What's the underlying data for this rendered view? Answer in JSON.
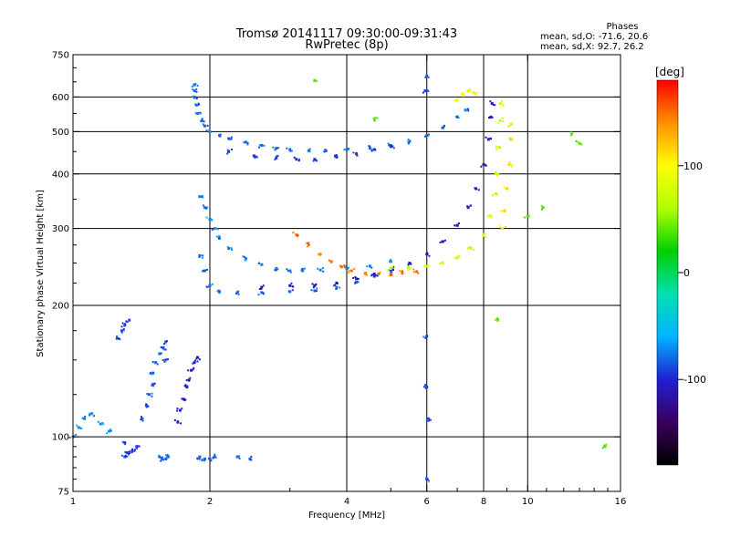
{
  "header": {
    "title": "Tromsø 20141117 09:30:00-09:31:43",
    "subtitle": "RwPretec (8p)"
  },
  "phase_stats": {
    "heading": "Phases",
    "line_o": "mean, sd,O: -71.6, 20.6",
    "line_x": "mean, sd,X:  92.7, 26.2"
  },
  "colorbar": {
    "unit": "[deg]",
    "ticks": [
      100,
      0,
      -100
    ],
    "range": [
      -180,
      180
    ],
    "stops": [
      "#000000",
      "#3a0060",
      "#2020d0",
      "#00b4ff",
      "#00e0b0",
      "#00d000",
      "#b0ff00",
      "#ffff00",
      "#ff9000",
      "#ff0000"
    ]
  },
  "chart_data": {
    "type": "scatter",
    "title": "Tromsø 20141117 09:30:00-09:31:43",
    "subtitle": "RwPretec (8p)",
    "xlabel": "Frequency [MHz]",
    "ylabel": "Stationary phase Virtual Height [km]",
    "x_scale": "log",
    "y_scale": "log",
    "xlim": [
      1,
      16
    ],
    "ylim": [
      75,
      750
    ],
    "x_ticks": [
      1,
      2,
      4,
      6,
      8,
      10,
      16
    ],
    "y_ticks": [
      75,
      100,
      200,
      300,
      400,
      500,
      600,
      750
    ],
    "x_grid": [
      2,
      4,
      6,
      8,
      10
    ],
    "y_grid": [
      100,
      200,
      300,
      400,
      500,
      600
    ],
    "grid": true,
    "color_variable": "phase [deg]",
    "series": [
      {
        "points": [
          [
            1.85,
            640
          ],
          [
            1.85,
            620
          ],
          [
            1.85,
            600
          ],
          [
            1.87,
            575
          ],
          [
            1.88,
            550
          ],
          [
            1.92,
            530
          ],
          [
            1.95,
            515
          ],
          [
            2.0,
            500
          ],
          [
            2.1,
            490
          ],
          [
            2.2,
            482
          ],
          [
            2.4,
            473
          ],
          [
            2.6,
            465
          ],
          [
            2.8,
            458
          ],
          [
            3.0,
            455
          ],
          [
            3.3,
            452
          ],
          [
            3.6,
            452
          ],
          [
            4.0,
            455
          ],
          [
            4.5,
            458
          ],
          [
            5.0,
            465
          ],
          [
            5.5,
            475
          ],
          [
            6.0,
            490
          ],
          [
            6.5,
            510
          ],
          [
            7.0,
            540
          ],
          [
            7.3,
            560
          ]
        ],
        "phase": -80
      },
      {
        "points": [
          [
            2.2,
            450
          ],
          [
            2.5,
            440
          ],
          [
            2.8,
            435
          ],
          [
            3.1,
            432
          ],
          [
            3.4,
            432
          ],
          [
            3.8,
            437
          ],
          [
            4.2,
            445
          ],
          [
            4.6,
            455
          ],
          [
            5.0,
            462
          ]
        ],
        "phase": -95
      },
      {
        "points": [
          [
            1.9,
            355
          ],
          [
            1.95,
            335
          ],
          [
            2.0,
            315
          ],
          [
            2.05,
            300
          ],
          [
            2.1,
            285
          ],
          [
            2.2,
            270
          ],
          [
            2.4,
            256
          ],
          [
            2.6,
            248
          ],
          [
            2.8,
            243
          ],
          [
            3.0,
            240
          ],
          [
            3.2,
            240
          ],
          [
            3.5,
            241
          ],
          [
            4.0,
            243
          ],
          [
            4.5,
            246
          ],
          [
            5.0,
            252
          ]
        ],
        "phase": -75
      },
      {
        "points": [
          [
            1.9,
            260
          ],
          [
            1.95,
            240
          ],
          [
            2.0,
            222
          ],
          [
            2.1,
            215
          ],
          [
            2.3,
            214
          ],
          [
            2.6,
            214
          ],
          [
            3.0,
            215
          ],
          [
            3.4,
            216
          ],
          [
            3.8,
            220
          ],
          [
            4.2,
            226
          ],
          [
            4.6,
            233
          ],
          [
            5.0,
            240
          ]
        ],
        "phase": -80
      },
      {
        "points": [
          [
            2.6,
            220
          ],
          [
            3.0,
            222
          ],
          [
            3.4,
            222
          ],
          [
            3.8,
            225
          ],
          [
            4.2,
            230
          ],
          [
            4.6,
            236
          ],
          [
            5.0,
            242
          ],
          [
            5.5,
            250
          ],
          [
            6.0,
            262
          ],
          [
            6.5,
            280
          ],
          [
            7.0,
            305
          ],
          [
            7.4,
            335
          ],
          [
            7.7,
            370
          ],
          [
            8.0,
            420
          ],
          [
            8.2,
            480
          ],
          [
            8.3,
            540
          ],
          [
            8.35,
            580
          ]
        ],
        "phase": -110
      },
      {
        "points": [
          [
            3.1,
            290
          ],
          [
            3.3,
            275
          ],
          [
            3.5,
            262
          ],
          [
            3.7,
            252
          ],
          [
            3.9,
            245
          ],
          [
            4.1,
            240
          ],
          [
            4.4,
            237
          ],
          [
            4.7,
            236
          ],
          [
            5.0,
            236
          ],
          [
            5.3,
            237
          ],
          [
            5.7,
            239
          ]
        ],
        "phase": 150
      },
      {
        "points": [
          [
            5.0,
            243
          ],
          [
            5.5,
            243
          ],
          [
            6.0,
            246
          ],
          [
            6.5,
            250
          ],
          [
            7.0,
            257
          ],
          [
            7.5,
            270
          ],
          [
            8.0,
            290
          ],
          [
            8.3,
            320
          ],
          [
            8.5,
            360
          ],
          [
            8.6,
            400
          ],
          [
            8.65,
            460
          ],
          [
            8.7,
            530
          ],
          [
            8.7,
            580
          ]
        ],
        "phase": 75
      },
      {
        "points": [
          [
            7.0,
            590
          ],
          [
            7.2,
            610
          ],
          [
            7.4,
            620
          ],
          [
            7.6,
            615
          ]
        ],
        "phase": 90
      },
      {
        "points": [
          [
            8.8,
            300
          ],
          [
            8.9,
            330
          ],
          [
            9.0,
            370
          ],
          [
            9.1,
            420
          ],
          [
            9.2,
            480
          ],
          [
            9.2,
            520
          ]
        ],
        "phase": 110
      },
      {
        "points": [
          [
            1.3,
            97
          ],
          [
            1.32,
            92
          ],
          [
            1.35,
            93
          ],
          [
            1.38,
            95
          ],
          [
            1.3,
            90
          ],
          [
            1.33,
            92
          ]
        ],
        "phase": -90
      },
      {
        "points": [
          [
            1.42,
            110
          ],
          [
            1.45,
            118
          ],
          [
            1.47,
            125
          ],
          [
            1.5,
            132
          ],
          [
            1.5,
            140
          ],
          [
            1.52,
            148
          ],
          [
            1.55,
            155
          ],
          [
            1.58,
            160
          ],
          [
            1.6,
            165
          ],
          [
            1.6,
            150
          ]
        ],
        "phase": -85
      },
      {
        "points": [
          [
            1.7,
            108
          ],
          [
            1.72,
            115
          ],
          [
            1.75,
            122
          ],
          [
            1.78,
            130
          ],
          [
            1.8,
            135
          ],
          [
            1.82,
            142
          ],
          [
            1.85,
            148
          ],
          [
            1.88,
            152
          ]
        ],
        "phase": -105
      },
      {
        "points": [
          [
            1.25,
            168
          ],
          [
            1.28,
            175
          ],
          [
            1.3,
            180
          ],
          [
            1.33,
            185
          ]
        ],
        "phase": -88
      },
      {
        "points": [
          [
            1.0,
            100
          ],
          [
            1.03,
            105
          ],
          [
            1.06,
            110
          ],
          [
            1.1,
            113
          ],
          [
            1.15,
            107
          ],
          [
            1.2,
            103
          ]
        ],
        "phase": -70
      },
      {
        "points": [
          [
            1.55,
            90
          ],
          [
            1.57,
            89
          ],
          [
            1.6,
            89
          ],
          [
            1.62,
            90
          ],
          [
            1.9,
            90
          ],
          [
            1.95,
            89
          ],
          [
            2.0,
            89
          ],
          [
            2.05,
            90
          ],
          [
            2.3,
            90
          ],
          [
            2.45,
            89
          ]
        ],
        "phase": -82
      },
      {
        "points": [
          [
            6.0,
            670
          ],
          [
            5.95,
            620
          ],
          [
            6.0,
            170
          ],
          [
            6.0,
            130
          ],
          [
            6.05,
            110
          ],
          [
            6.0,
            80
          ]
        ],
        "phase": -90
      },
      {
        "points": [
          [
            3.4,
            655
          ],
          [
            12.5,
            495
          ],
          [
            13.0,
            470
          ],
          [
            10.8,
            335
          ],
          [
            10.0,
            320
          ],
          [
            14.8,
            95
          ],
          [
            4.6,
            535
          ],
          [
            8.6,
            185
          ]
        ],
        "phase": 40
      }
    ]
  }
}
